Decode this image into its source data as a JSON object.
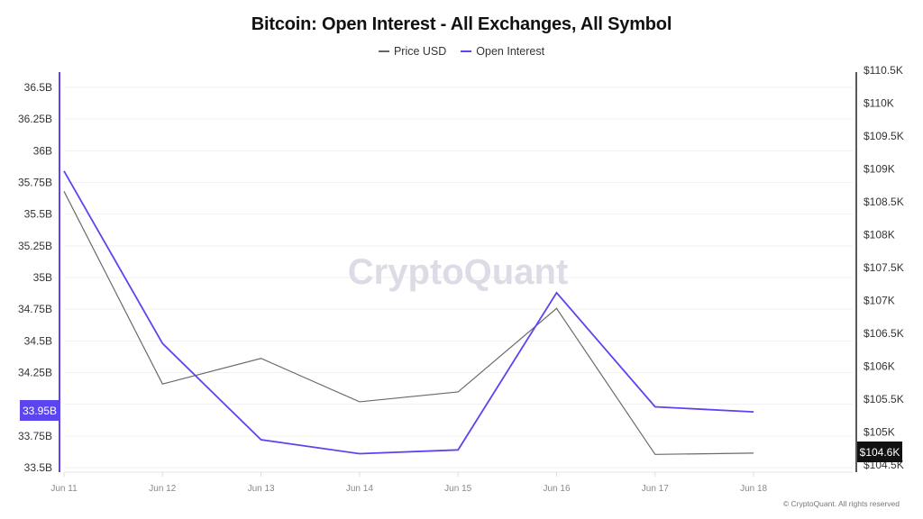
{
  "title": "Bitcoin: Open Interest - All Exchanges, All Symbol",
  "legend": [
    {
      "label": "Price USD",
      "color": "#666666"
    },
    {
      "label": "Open Interest",
      "color": "#5b45f0"
    }
  ],
  "watermark": "CryptoQuant",
  "footer": "© CryptoQuant. All rights reserved",
  "left_axis": {
    "ticks": [
      "36.5B",
      "36.25B",
      "36B",
      "35.75B",
      "35.5B",
      "35.25B",
      "35B",
      "34.75B",
      "34.5B",
      "34.25B",
      "33.75B",
      "33.5B"
    ],
    "highlight_label": "33.95B",
    "color": "#5b45f0"
  },
  "right_axis": {
    "ticks": [
      "$110.5K",
      "$110K",
      "$109.5K",
      "$109K",
      "$108.5K",
      "$108K",
      "$107.5K",
      "$107K",
      "$106.5K",
      "$106K",
      "$105.5K",
      "$105K",
      "$104.5K"
    ],
    "highlight_label": "$104.6K",
    "color": "#111111"
  },
  "x_axis": {
    "ticks": [
      "Jun 11",
      "Jun 12",
      "Jun 13",
      "Jun 14",
      "Jun 15",
      "Jun 16",
      "Jun 17",
      "Jun 18"
    ]
  },
  "chart_data": {
    "type": "line",
    "title": "Bitcoin: Open Interest - All Exchanges, All Symbol",
    "categories": [
      "Jun 11",
      "Jun 12",
      "Jun 13",
      "Jun 14",
      "Jun 15",
      "Jun 16",
      "Jun 17",
      "Jun 18"
    ],
    "series": [
      {
        "name": "Price USD",
        "axis": "right",
        "unit": "USD (K)",
        "color": "#666666",
        "values": [
          108.66,
          105.73,
          106.12,
          105.46,
          105.61,
          106.88,
          104.66,
          104.68
        ]
      },
      {
        "name": "Open Interest",
        "axis": "left",
        "unit": "USD (B)",
        "color": "#5b45f0",
        "values": [
          35.84,
          34.48,
          33.72,
          33.61,
          33.64,
          34.88,
          33.98,
          33.94
        ]
      }
    ],
    "xlabel": "",
    "ylabel_left": "Open Interest",
    "ylabel_right": "Price USD",
    "ylim_left": [
      33.5,
      36.5
    ],
    "ylim_right": [
      104.5,
      110.5
    ],
    "grid": true,
    "legend_position": "top",
    "annotations": [
      "33.95B (current open interest)",
      "$104.6K (current price)"
    ]
  }
}
